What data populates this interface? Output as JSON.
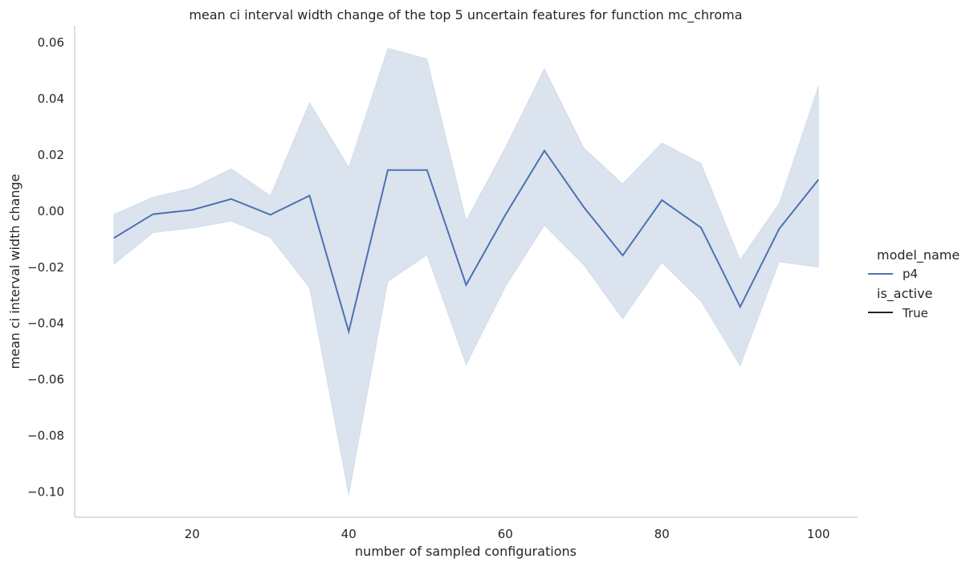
{
  "chart_data": {
    "type": "line",
    "title": "mean ci interval width change of the top 5 uncertain features for function mc_chroma",
    "xlabel": "number of sampled configurations",
    "ylabel": "mean ci interval width change",
    "xlim": [
      5,
      105
    ],
    "ylim": [
      -0.109,
      0.066
    ],
    "xticks": [
      20,
      40,
      60,
      80,
      100
    ],
    "xtick_labels": [
      "20",
      "40",
      "60",
      "80",
      "100"
    ],
    "yticks": [
      0.06,
      0.04,
      0.02,
      0.0,
      -0.02,
      -0.04,
      -0.06,
      -0.08,
      -0.1
    ],
    "ytick_labels": [
      "0.06",
      "0.04",
      "0.02",
      "0.00",
      "−0.02",
      "−0.04",
      "−0.06",
      "−0.08",
      "−0.10"
    ],
    "grid": false,
    "legend_position": "right",
    "legend": {
      "hue_title": "model_name",
      "hue_entries": [
        {
          "label": "p4",
          "color": "#4c72b0"
        }
      ],
      "style_title": "is_active",
      "style_entries": [
        {
          "label": "True",
          "color": "#262626"
        }
      ]
    },
    "series": [
      {
        "name": "p4",
        "color": "#4c72b0",
        "band_color": "#4c72b0",
        "x": [
          10,
          15,
          20,
          25,
          30,
          35,
          40,
          45,
          50,
          55,
          60,
          65,
          70,
          75,
          80,
          85,
          90,
          95,
          100
        ],
        "y": [
          -0.0096,
          -0.0011,
          0.0004,
          0.0043,
          -0.0013,
          0.0055,
          -0.0429,
          0.0146,
          0.0146,
          -0.0263,
          -0.0014,
          0.0215,
          0.0015,
          -0.0158,
          0.0039,
          -0.0059,
          -0.0341,
          -0.0063,
          0.0112
        ],
        "ci_upper": [
          -0.0012,
          0.005,
          0.0082,
          0.0151,
          0.0055,
          0.0387,
          0.0156,
          0.058,
          0.0542,
          -0.0034,
          0.0226,
          0.0508,
          0.0226,
          0.0097,
          0.0243,
          0.017,
          -0.0173,
          0.0028,
          0.0446
        ],
        "ci_lower": [
          -0.019,
          -0.0077,
          -0.0061,
          -0.0036,
          -0.0095,
          -0.0274,
          -0.1012,
          -0.0251,
          -0.0156,
          -0.0548,
          -0.027,
          -0.0051,
          -0.0191,
          -0.0384,
          -0.0183,
          -0.0321,
          -0.0552,
          -0.0181,
          -0.02
        ]
      }
    ]
  }
}
